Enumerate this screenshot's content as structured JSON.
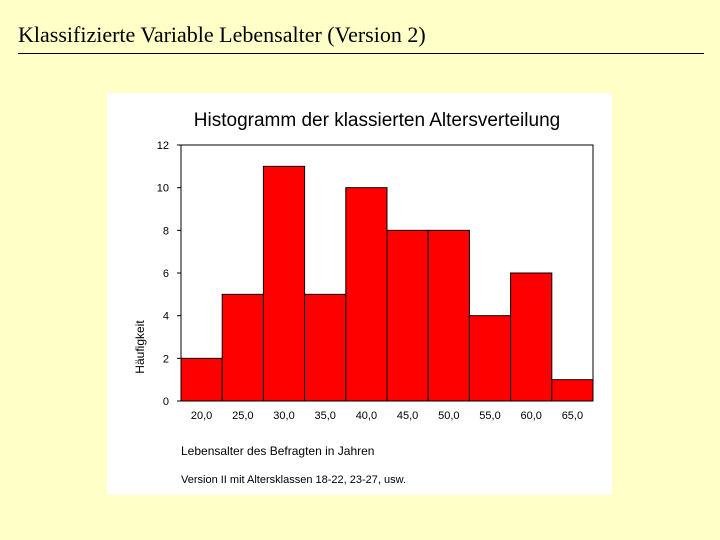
{
  "slide": {
    "title": "Klassifizierte Variable Lebensalter (Version 2)"
  },
  "chart_data": {
    "type": "bar",
    "title": "Histogramm der klassierten Altersverteilung",
    "xlabel": "Lebensalter des Befragten in Jahren",
    "ylabel": "Häufigkeit",
    "note": "Version II mit Altersklassen 18-22, 23-27, usw.",
    "categories": [
      "20,0",
      "25,0",
      "30,0",
      "35,0",
      "40,0",
      "45,0",
      "50,0",
      "55,0",
      "60,0",
      "65,0"
    ],
    "values": [
      2,
      5,
      11,
      5,
      10,
      8,
      8,
      4,
      6,
      1
    ],
    "ylim": [
      0,
      12
    ],
    "yticks": [
      0,
      2,
      4,
      6,
      8,
      10,
      12
    ],
    "grid": false,
    "colors": {
      "bar": "#ff0000",
      "bar_stroke": "#000000",
      "panel": "#ffffff",
      "background": "#ffffc8"
    }
  }
}
